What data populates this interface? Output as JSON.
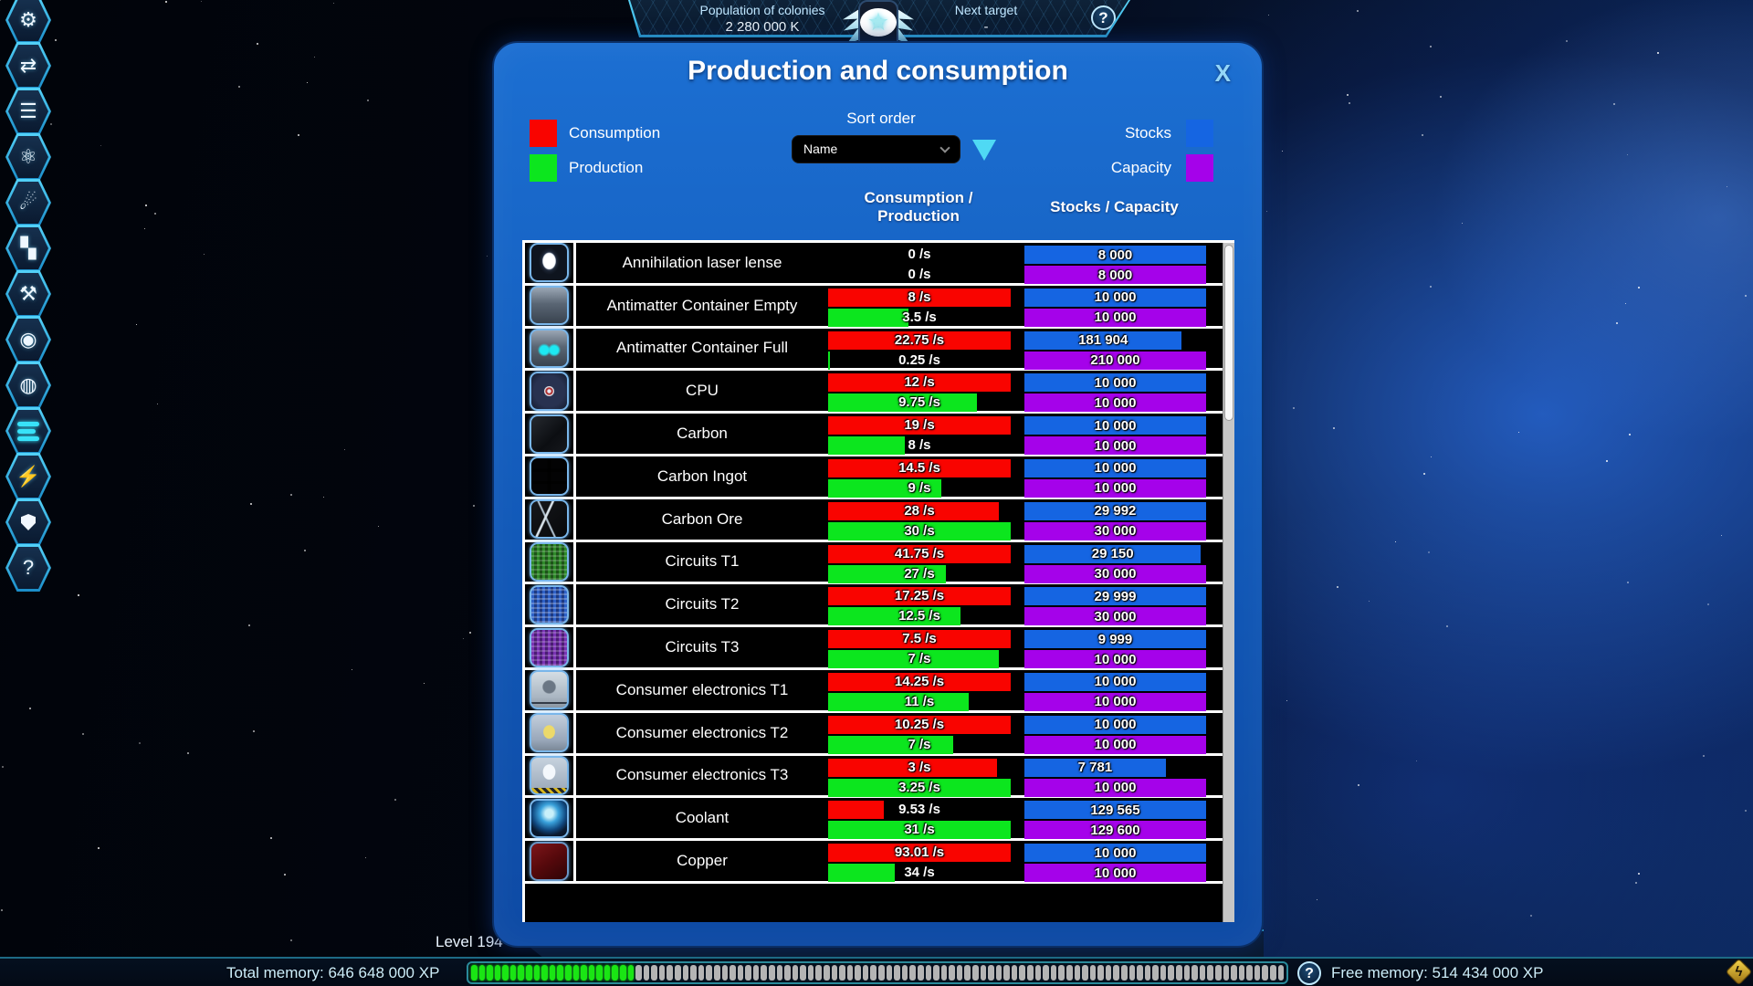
{
  "top_bar": {
    "population_label": "Population of colonies",
    "population_value": "2 280 000 K",
    "next_target_label": "Next target",
    "next_target_value": "-",
    "help_glyph": "?"
  },
  "sidebar": {
    "items": [
      {
        "name": "molecule",
        "glyph": "⚙",
        "shape": "glyph"
      },
      {
        "name": "transfer-layers",
        "glyph": "⇄",
        "shape": "glyph"
      },
      {
        "name": "list",
        "glyph": "☰",
        "shape": "glyph"
      },
      {
        "name": "atom-research",
        "glyph": "⚛",
        "shape": "glyph"
      },
      {
        "name": "asteroid-mining",
        "glyph": "☄",
        "shape": "glyph"
      },
      {
        "name": "factory-grid",
        "glyph": "▚",
        "shape": "glyph"
      },
      {
        "name": "crafting-tools",
        "glyph": "⚒",
        "shape": "glyph"
      },
      {
        "name": "observation-eye",
        "glyph": "◉",
        "shape": "glyph"
      },
      {
        "name": "planet-orbit",
        "glyph": "◍",
        "shape": "glyph"
      },
      {
        "name": "production-settings",
        "glyph": "",
        "shape": "sliders",
        "active": true
      },
      {
        "name": "energy-strike",
        "glyph": "⚡",
        "shape": "glyph"
      },
      {
        "name": "defense-shield",
        "glyph": "",
        "shape": "shield"
      },
      {
        "name": "help",
        "glyph": "?",
        "shape": "glyph"
      }
    ]
  },
  "dialog": {
    "title": "Production and consumption",
    "close_label": "X",
    "legend": {
      "consumption": "Consumption",
      "production": "Production",
      "stocks": "Stocks",
      "capacity": "Capacity"
    },
    "colors": {
      "consumption": "#f90400",
      "production": "#0ce61e",
      "stocks": "#1565e2",
      "capacity": "#a502ea"
    },
    "sort": {
      "label": "Sort order",
      "selected": "Name"
    },
    "columns": {
      "cons_prod": "Consumption /\nProduction",
      "stocks_capacity": "Stocks / Capacity"
    },
    "rows": [
      {
        "name": "Annihilation laser lense",
        "icon": "laser-lense",
        "consumption": 0,
        "consumption_label": "0 /s",
        "production": 0,
        "production_label": "0 /s",
        "stocks": 8000,
        "stocks_label": "8 000",
        "capacity": 8000,
        "capacity_label": "8 000"
      },
      {
        "name": "Antimatter Container Empty",
        "icon": "antimatter-empty",
        "consumption": 8,
        "consumption_label": "8 /s",
        "production": 3.5,
        "production_label": "3.5 /s",
        "stocks": 10000,
        "stocks_label": "10 000",
        "capacity": 10000,
        "capacity_label": "10 000"
      },
      {
        "name": "Antimatter Container Full",
        "icon": "antimatter-full",
        "consumption": 22.75,
        "consumption_label": "22.75 /s",
        "production": 0.25,
        "production_label": "0.25 /s",
        "stocks": 181904,
        "stocks_label": "181 904",
        "capacity": 210000,
        "capacity_label": "210 000"
      },
      {
        "name": "CPU",
        "icon": "cpu",
        "consumption": 12,
        "consumption_label": "12 /s",
        "production": 9.75,
        "production_label": "9.75 /s",
        "stocks": 10000,
        "stocks_label": "10 000",
        "capacity": 10000,
        "capacity_label": "10 000"
      },
      {
        "name": "Carbon",
        "icon": "carbon",
        "consumption": 19,
        "consumption_label": "19 /s",
        "production": 8,
        "production_label": "8 /s",
        "stocks": 10000,
        "stocks_label": "10 000",
        "capacity": 10000,
        "capacity_label": "10 000"
      },
      {
        "name": "Carbon Ingot",
        "icon": "carbon-ingot",
        "consumption": 14.5,
        "consumption_label": "14.5 /s",
        "production": 9,
        "production_label": "9 /s",
        "stocks": 10000,
        "stocks_label": "10 000",
        "capacity": 10000,
        "capacity_label": "10 000"
      },
      {
        "name": "Carbon Ore",
        "icon": "carbon-ore",
        "consumption": 28,
        "consumption_label": "28 /s",
        "production": 30,
        "production_label": "30 /s",
        "stocks": 29992,
        "stocks_label": "29 992",
        "capacity": 30000,
        "capacity_label": "30 000"
      },
      {
        "name": "Circuits T1",
        "icon": "circuits-t1",
        "consumption": 41.75,
        "consumption_label": "41.75 /s",
        "production": 27,
        "production_label": "27 /s",
        "stocks": 29150,
        "stocks_label": "29 150",
        "capacity": 30000,
        "capacity_label": "30 000"
      },
      {
        "name": "Circuits T2",
        "icon": "circuits-t2",
        "consumption": 17.25,
        "consumption_label": "17.25 /s",
        "production": 12.5,
        "production_label": "12.5 /s",
        "stocks": 29999,
        "stocks_label": "29 999",
        "capacity": 30000,
        "capacity_label": "30 000"
      },
      {
        "name": "Circuits T3",
        "icon": "circuits-t3",
        "consumption": 7.5,
        "consumption_label": "7.5 /s",
        "production": 7,
        "production_label": "7 /s",
        "stocks": 9999,
        "stocks_label": "9 999",
        "capacity": 10000,
        "capacity_label": "10 000"
      },
      {
        "name": "Consumer electronics T1",
        "icon": "consumer-t1",
        "consumption": 14.25,
        "consumption_label": "14.25 /s",
        "production": 11,
        "production_label": "11 /s",
        "stocks": 10000,
        "stocks_label": "10 000",
        "capacity": 10000,
        "capacity_label": "10 000"
      },
      {
        "name": "Consumer electronics T2",
        "icon": "consumer-t2",
        "consumption": 10.25,
        "consumption_label": "10.25 /s",
        "production": 7,
        "production_label": "7 /s",
        "stocks": 10000,
        "stocks_label": "10 000",
        "capacity": 10000,
        "capacity_label": "10 000"
      },
      {
        "name": "Consumer electronics T3",
        "icon": "consumer-t3",
        "consumption": 3,
        "consumption_label": "3 /s",
        "production": 3.25,
        "production_label": "3.25 /s",
        "stocks": 7781,
        "stocks_label": "7 781",
        "capacity": 10000,
        "capacity_label": "10 000"
      },
      {
        "name": "Coolant",
        "icon": "coolant",
        "consumption": 9.53,
        "consumption_label": "9.53 /s",
        "production": 31,
        "production_label": "31 /s",
        "stocks": 129565,
        "stocks_label": "129 565",
        "capacity": 129600,
        "capacity_label": "129 600"
      },
      {
        "name": "Copper",
        "icon": "copper",
        "consumption": 93.01,
        "consumption_label": "93.01 /s",
        "production": 34,
        "production_label": "34 /s",
        "stocks": 10000,
        "stocks_label": "10 000",
        "capacity": 10000,
        "capacity_label": "10 000"
      }
    ]
  },
  "status_bar": {
    "level": "Level 194",
    "total_memory": "Total memory: 646 648 000 XP",
    "free_memory": "Free memory: 514 434 000 XP",
    "help_glyph": "?",
    "progress": {
      "filled": 21,
      "total": 104
    }
  }
}
